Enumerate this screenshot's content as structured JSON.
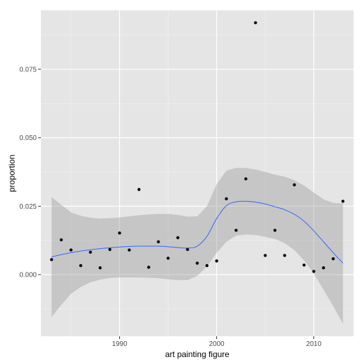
{
  "chart_data": {
    "type": "scatter",
    "xlabel": "art painting figure",
    "ylabel": "proportion",
    "xlim": [
      1981.9,
      2014.1
    ],
    "ylim": [
      -0.0225,
      0.0965
    ],
    "x_ticks": [
      1990,
      2000,
      2010
    ],
    "x_tick_labels": [
      "1990",
      "2000",
      "2010"
    ],
    "y_ticks": [
      0.0,
      0.025,
      0.05,
      0.075
    ],
    "y_tick_labels": [
      "0.000",
      "0.025",
      "0.050",
      "0.075"
    ],
    "grid": true,
    "points": [
      {
        "x": 1983,
        "y": 0.0055
      },
      {
        "x": 1984,
        "y": 0.0127
      },
      {
        "x": 1985,
        "y": 0.009
      },
      {
        "x": 1986,
        "y": 0.0033
      },
      {
        "x": 1987,
        "y": 0.0082
      },
      {
        "x": 1988,
        "y": 0.0025
      },
      {
        "x": 1989,
        "y": 0.0092
      },
      {
        "x": 1990,
        "y": 0.0152
      },
      {
        "x": 1991,
        "y": 0.009
      },
      {
        "x": 1992,
        "y": 0.0311
      },
      {
        "x": 1993,
        "y": 0.0027
      },
      {
        "x": 1994,
        "y": 0.012
      },
      {
        "x": 1995,
        "y": 0.006
      },
      {
        "x": 1996,
        "y": 0.0135
      },
      {
        "x": 1997,
        "y": 0.0092
      },
      {
        "x": 1998,
        "y": 0.0042
      },
      {
        "x": 1999,
        "y": 0.0033
      },
      {
        "x": 2000,
        "y": 0.005
      },
      {
        "x": 2001,
        "y": 0.0277
      },
      {
        "x": 2002,
        "y": 0.0162
      },
      {
        "x": 2003,
        "y": 0.035
      },
      {
        "x": 2004,
        "y": 0.092
      },
      {
        "x": 2005,
        "y": 0.007
      },
      {
        "x": 2006,
        "y": 0.0162
      },
      {
        "x": 2007,
        "y": 0.007
      },
      {
        "x": 2008,
        "y": 0.0328
      },
      {
        "x": 2009,
        "y": 0.0035
      },
      {
        "x": 2010,
        "y": 0.0012
      },
      {
        "x": 2011,
        "y": 0.0025
      },
      {
        "x": 2012,
        "y": 0.0058
      },
      {
        "x": 2013,
        "y": 0.0268
      }
    ],
    "smooth": {
      "x": [
        1983,
        1984,
        1985,
        1986,
        1987,
        1988,
        1989,
        1990,
        1991,
        1992,
        1993,
        1994,
        1995,
        1996,
        1997,
        1998,
        1999,
        2000,
        2001,
        2002,
        2003,
        2004,
        2005,
        2006,
        2007,
        2008,
        2009,
        2010,
        2011,
        2012,
        2013
      ],
      "y": [
        0.0065,
        0.0073,
        0.008,
        0.0086,
        0.0091,
        0.0095,
        0.0098,
        0.0101,
        0.0103,
        0.0104,
        0.0104,
        0.0104,
        0.0102,
        0.0099,
        0.0097,
        0.0104,
        0.014,
        0.0205,
        0.0252,
        0.0266,
        0.0268,
        0.0265,
        0.0258,
        0.0248,
        0.0237,
        0.022,
        0.0195,
        0.016,
        0.012,
        0.008,
        0.0042
      ],
      "lower": [
        -0.0155,
        -0.011,
        -0.007,
        -0.0045,
        -0.0028,
        -0.0018,
        -0.0012,
        -0.001,
        -0.001,
        -0.001,
        -0.0011,
        -0.0013,
        -0.0017,
        -0.002,
        -0.002,
        -0.0005,
        0.003,
        0.008,
        0.012,
        0.0142,
        0.0147,
        0.0145,
        0.0138,
        0.013,
        0.0115,
        0.009,
        0.0052,
        0.0005,
        -0.0055,
        -0.0115,
        -0.018
      ],
      "upper": [
        0.0283,
        0.0255,
        0.0228,
        0.0215,
        0.0208,
        0.0205,
        0.0206,
        0.0209,
        0.0213,
        0.0217,
        0.022,
        0.0222,
        0.0222,
        0.0218,
        0.0212,
        0.0213,
        0.025,
        0.033,
        0.038,
        0.039,
        0.039,
        0.0384,
        0.0375,
        0.0365,
        0.0358,
        0.0345,
        0.0325,
        0.03,
        0.0275,
        0.0262,
        0.026
      ]
    },
    "colors": {
      "panel": "#e5e5e5",
      "grid_major": "#ffffff",
      "grid_minor": "#f2f2f2",
      "point": "#000000",
      "line": "#3366ff",
      "ribbon": "#999999"
    }
  }
}
